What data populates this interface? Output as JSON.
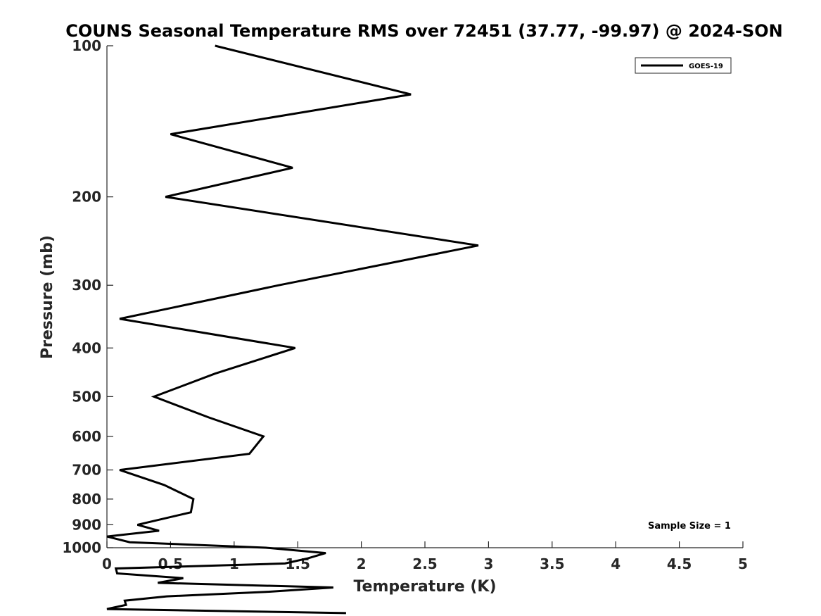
{
  "chart_data": {
    "type": "line",
    "title": "COUNS Seasonal Temperature RMS over 72451 (37.77, -99.97) @ 2024-SON",
    "xlabel": "Temperature (K)",
    "ylabel": "Pressure (mb)",
    "xlim": [
      0,
      5
    ],
    "ylim": [
      1000,
      100
    ],
    "y_scale": "log",
    "y_reversed": true,
    "grid": false,
    "legend_position": "top-right",
    "x_ticks": [
      "0",
      "0.5",
      "1",
      "1.5",
      "2",
      "2.5",
      "3",
      "3.5",
      "4",
      "4.5",
      "5"
    ],
    "y_ticks": [
      "100",
      "200",
      "300",
      "400",
      "500",
      "600",
      "700",
      "800",
      "900",
      "1000"
    ],
    "annotation": "Sample Size = 1",
    "series": [
      {
        "name": "GOES-19",
        "color": "#000000",
        "points": [
          {
            "p": 100,
            "t": 0.85
          },
          {
            "p": 125,
            "t": 2.39
          },
          {
            "p": 150,
            "t": 0.5
          },
          {
            "p": 175,
            "t": 1.46
          },
          {
            "p": 200,
            "t": 0.46
          },
          {
            "p": 250,
            "t": 2.92
          },
          {
            "p": 300,
            "t": 1.35
          },
          {
            "p": 350,
            "t": 0.1
          },
          {
            "p": 400,
            "t": 1.48
          },
          {
            "p": 450,
            "t": 0.85
          },
          {
            "p": 500,
            "t": 0.37
          },
          {
            "p": 550,
            "t": 0.8
          },
          {
            "p": 600,
            "t": 1.23
          },
          {
            "p": 650,
            "t": 1.12
          },
          {
            "p": 700,
            "t": 0.1
          },
          {
            "p": 750,
            "t": 0.45
          },
          {
            "p": 800,
            "t": 0.68
          },
          {
            "p": 850,
            "t": 0.66
          },
          {
            "p": 900,
            "t": 0.24
          },
          {
            "p": 925,
            "t": 0.41
          },
          {
            "p": 950,
            "t": 0.0
          },
          {
            "p": 975,
            "t": 0.18
          },
          {
            "p": 1000,
            "t": 1.25
          },
          {
            "p": 1025,
            "t": 1.72
          },
          {
            "p": 1050,
            "t": 1.58
          },
          {
            "p": 1075,
            "t": 1.4
          },
          {
            "p": 1100,
            "t": 0.07
          },
          {
            "p": 1125,
            "t": 0.08
          },
          {
            "p": 1150,
            "t": 0.6
          },
          {
            "p": 1175,
            "t": 0.4
          },
          {
            "p": 1200,
            "t": 1.78
          },
          {
            "p": 1225,
            "t": 1.25
          },
          {
            "p": 1250,
            "t": 0.47
          },
          {
            "p": 1275,
            "t": 0.14
          },
          {
            "p": 1300,
            "t": 0.15
          },
          {
            "p": 1325,
            "t": 0.0
          },
          {
            "p": 1350,
            "t": 1.88
          }
        ]
      }
    ]
  }
}
